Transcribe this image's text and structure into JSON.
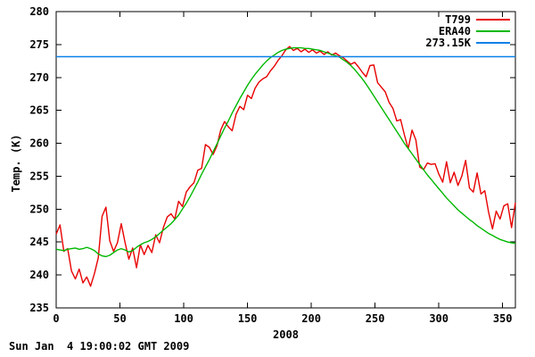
{
  "meta": {
    "timestamp_text": "Sun Jan  4 19:00:02 GMT 2009"
  },
  "chart_data": {
    "type": "line",
    "title": "",
    "xlabel": "2008",
    "ylabel": "Temp. (K)",
    "x_unit": "day_of_year",
    "xlim": [
      0,
      360
    ],
    "ylim": [
      235,
      280
    ],
    "xticks": [
      0,
      50,
      100,
      150,
      200,
      250,
      300,
      350
    ],
    "yticks": [
      235,
      240,
      245,
      250,
      255,
      260,
      265,
      270,
      275,
      280
    ],
    "grid": false,
    "legend_position": "top-right-inside",
    "background": "#ffffff",
    "border_color": "#000000",
    "x_start": 0,
    "x_step": 3,
    "series": [
      {
        "name": "T799",
        "color": "#e80000",
        "type": "line",
        "values": [
          246.2,
          247.6,
          243.6,
          244.0,
          240.6,
          239.4,
          240.9,
          238.8,
          239.7,
          238.3,
          240.2,
          242.6,
          248.9,
          250.3,
          245.2,
          243.6,
          244.9,
          247.8,
          244.9,
          242.4,
          244.1,
          241.1,
          244.6,
          243.1,
          244.5,
          243.4,
          246.1,
          244.9,
          247.2,
          248.8,
          249.3,
          248.5,
          251.2,
          250.4,
          252.6,
          253.4,
          254.0,
          255.9,
          256.2,
          259.8,
          259.4,
          258.3,
          259.6,
          262.0,
          263.3,
          262.5,
          261.9,
          264.4,
          265.6,
          265.1,
          267.3,
          266.8,
          268.4,
          269.3,
          269.8,
          270.1,
          271.0,
          271.7,
          272.6,
          273.3,
          274.2,
          274.7,
          274.1,
          274.4,
          273.9,
          274.3,
          273.8,
          274.2,
          273.7,
          274.0,
          273.5,
          273.9,
          273.4,
          273.7,
          273.3,
          273.0,
          272.5,
          272.0,
          272.3,
          271.6,
          270.8,
          270.1,
          271.8,
          271.9,
          269.2,
          268.5,
          267.8,
          266.2,
          265.3,
          263.4,
          263.6,
          261.3,
          259.2,
          262.0,
          260.5,
          256.4,
          256.0,
          257.0,
          256.8,
          256.9,
          255.3,
          254.1,
          257.2,
          254.0,
          255.6,
          253.6,
          255.0,
          257.4,
          253.2,
          252.6,
          255.5,
          252.3,
          252.8,
          249.5,
          247.0,
          249.7,
          248.5,
          250.5,
          250.8,
          247.2,
          251.0
        ]
      },
      {
        "name": "ERA40",
        "color": "#00b800",
        "type": "line",
        "values": [
          243.9,
          243.8,
          243.7,
          243.9,
          244.0,
          244.1,
          243.9,
          244.0,
          244.2,
          244.0,
          243.7,
          243.2,
          242.9,
          242.8,
          243.0,
          243.4,
          243.8,
          244.0,
          243.8,
          243.5,
          243.7,
          244.2,
          244.6,
          244.9,
          245.1,
          245.4,
          245.8,
          246.3,
          246.8,
          247.3,
          247.8,
          248.4,
          249.1,
          250.0,
          250.9,
          251.9,
          253.0,
          254.1,
          255.3,
          256.4,
          257.5,
          258.7,
          259.9,
          261.1,
          262.3,
          263.4,
          264.6,
          265.7,
          266.8,
          267.8,
          268.8,
          269.7,
          270.5,
          271.2,
          271.9,
          272.5,
          273.0,
          273.4,
          273.8,
          274.1,
          274.3,
          274.4,
          274.5,
          274.5,
          274.5,
          274.4,
          274.4,
          274.3,
          274.2,
          274.1,
          273.9,
          273.7,
          273.5,
          273.3,
          273.1,
          272.7,
          272.3,
          271.8,
          271.2,
          270.5,
          269.8,
          269.0,
          268.1,
          267.2,
          266.3,
          265.4,
          264.5,
          263.6,
          262.7,
          261.8,
          260.9,
          260.0,
          259.2,
          258.4,
          257.6,
          256.8,
          256.0,
          255.2,
          254.5,
          253.8,
          253.1,
          252.4,
          251.7,
          251.1,
          250.5,
          249.9,
          249.4,
          248.9,
          248.4,
          248.0,
          247.5,
          247.1,
          246.7,
          246.3,
          246.0,
          245.7,
          245.4,
          245.2,
          245.0,
          244.9,
          244.8
        ]
      },
      {
        "name": "273.15K",
        "color": "#0b80e8",
        "type": "hline",
        "value": 273.15
      }
    ]
  }
}
